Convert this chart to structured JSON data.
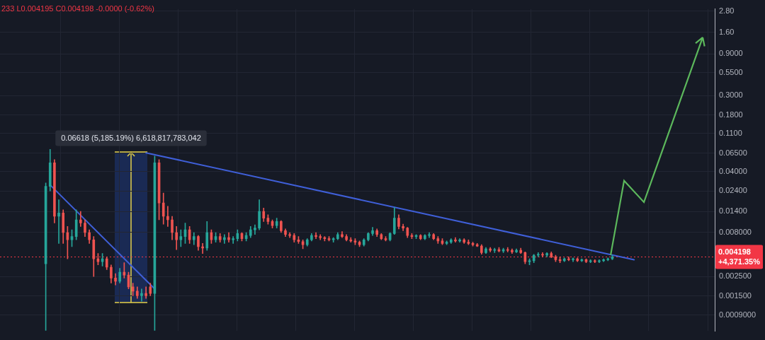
{
  "chart_data": {
    "type": "candlestick",
    "categories": [
      null,
      null,
      null,
      null,
      null,
      null,
      null,
      null,
      null,
      null,
      null,
      null,
      null,
      null,
      null,
      null,
      null,
      null,
      null,
      null,
      null,
      null,
      null,
      null,
      null,
      null,
      null,
      null,
      null,
      null,
      null,
      null,
      null,
      null,
      null,
      null,
      null,
      null,
      null,
      null,
      null,
      null,
      null,
      null,
      null,
      null,
      null,
      null,
      null,
      null,
      null,
      null,
      null,
      null,
      null,
      null,
      null,
      null,
      null,
      null,
      null,
      null,
      null,
      null,
      null,
      null,
      null,
      null,
      null,
      null,
      null,
      null,
      null,
      null,
      null,
      null,
      null,
      null,
      null,
      null,
      null,
      null,
      null,
      null,
      null,
      null,
      null,
      null,
      null,
      null,
      null,
      null,
      null,
      null,
      null,
      null,
      null,
      null,
      null,
      null,
      null,
      null,
      null,
      null,
      null,
      null,
      null,
      null,
      null,
      null,
      null,
      null,
      null,
      null,
      null,
      null,
      null,
      null,
      null,
      null,
      null,
      null,
      null,
      null,
      null,
      null,
      null,
      null,
      null,
      null,
      null,
      null,
      null,
      null,
      null,
      null,
      null,
      null,
      null,
      null,
      null,
      null,
      null,
      null,
      null,
      null,
      null,
      null,
      null,
      null,
      null,
      null,
      null,
      null,
      null,
      null,
      null,
      null,
      null,
      null,
      null,
      null,
      null,
      null
    ],
    "ohlc": [
      null,
      null,
      null,
      null,
      null,
      null,
      null,
      null,
      null,
      null,
      [
        0.0035,
        0.0297,
        0.0006,
        0.0272
      ],
      [
        0.0272,
        0.0721,
        0.024,
        0.0506
      ],
      [
        0.0506,
        0.0552,
        0.0103,
        0.0123
      ],
      [
        0.0123,
        0.0191,
        0.006,
        0.0134
      ],
      [
        0.0134,
        0.0146,
        0.006,
        0.008
      ],
      [
        0.008,
        0.0094,
        0.004,
        0.0066
      ],
      [
        0.0066,
        0.0086,
        0.0055,
        0.0072
      ],
      [
        0.0072,
        0.0146,
        0.0066,
        0.0112
      ],
      [
        0.0112,
        0.014,
        0.0094,
        0.0103
      ],
      [
        0.0103,
        0.0112,
        0.0072,
        0.008
      ],
      [
        0.008,
        0.0086,
        0.006,
        0.0066
      ],
      [
        0.0066,
        0.0072,
        0.0025,
        0.004
      ],
      [
        0.004,
        0.0046,
        0.0034,
        0.0037
      ],
      [
        0.0037,
        0.0046,
        0.0033,
        0.004
      ],
      [
        0.004,
        0.0042,
        0.003,
        0.0032
      ],
      [
        0.0032,
        0.0034,
        0.0021,
        0.0024
      ],
      [
        0.0024,
        0.0027,
        0.002,
        0.0022
      ],
      [
        0.0022,
        0.0031,
        0.0021,
        0.0028
      ],
      [
        0.0028,
        0.0036,
        0.0024,
        0.0026
      ],
      [
        0.0026,
        0.0028,
        0.0018,
        0.0019
      ],
      [
        0.0019,
        0.0021,
        0.0015,
        0.0017
      ],
      [
        0.0017,
        0.0019,
        0.0014,
        0.0015
      ],
      [
        0.0015,
        0.0018,
        0.0013,
        0.0016
      ],
      [
        0.0016,
        0.0019,
        0.0014,
        0.0015
      ],
      [
        0.0019,
        0.0021,
        0.0015,
        0.0016
      ],
      [
        0.0016,
        0.0604,
        0.0006,
        0.0506
      ],
      [
        0.0506,
        0.0552,
        0.0112,
        0.0175
      ],
      [
        0.0175,
        0.0228,
        0.01,
        0.0123
      ],
      [
        0.0123,
        0.016,
        0.0094,
        0.0112
      ],
      [
        0.0112,
        0.0123,
        0.0066,
        0.008
      ],
      [
        0.008,
        0.0094,
        0.0051,
        0.0066
      ],
      [
        0.0066,
        0.0086,
        0.0055,
        0.0072
      ],
      [
        0.0072,
        0.0103,
        0.006,
        0.0086
      ],
      [
        0.0086,
        0.0094,
        0.006,
        0.0066
      ],
      [
        0.0066,
        0.008,
        0.0058,
        0.0072
      ],
      [
        0.0072,
        0.0074,
        0.005,
        0.0055
      ],
      [
        0.0055,
        0.006,
        0.0046,
        0.0053
      ],
      [
        0.0053,
        0.0107,
        0.005,
        0.008
      ],
      [
        0.008,
        0.0086,
        0.006,
        0.0066
      ],
      [
        0.0066,
        0.008,
        0.0062,
        0.0072
      ],
      [
        0.0072,
        0.0078,
        0.0062,
        0.0066
      ],
      [
        0.0066,
        0.0076,
        0.006,
        0.007
      ],
      [
        0.007,
        0.008,
        0.0062,
        0.0066
      ],
      [
        0.0066,
        0.0072,
        0.006,
        0.0068
      ],
      [
        0.0068,
        0.0086,
        0.0064,
        0.0078
      ],
      [
        0.0078,
        0.008,
        0.0064,
        0.0068
      ],
      [
        0.0068,
        0.008,
        0.0064,
        0.0074
      ],
      [
        0.0074,
        0.0094,
        0.007,
        0.0086
      ],
      [
        0.0086,
        0.0098,
        0.0076,
        0.009
      ],
      [
        0.009,
        0.0191,
        0.0086,
        0.014
      ],
      [
        0.014,
        0.0153,
        0.0107,
        0.0117
      ],
      [
        0.0117,
        0.0128,
        0.01,
        0.0107
      ],
      [
        0.0107,
        0.0112,
        0.009,
        0.0096
      ],
      [
        0.0096,
        0.0117,
        0.009,
        0.0107
      ],
      [
        0.0107,
        0.011,
        0.008,
        0.0084
      ],
      [
        0.0084,
        0.0088,
        0.0072,
        0.0076
      ],
      [
        0.0076,
        0.008,
        0.007,
        0.0074
      ],
      [
        0.0074,
        0.0078,
        0.0062,
        0.0066
      ],
      [
        0.0066,
        0.0072,
        0.006,
        0.0063
      ],
      [
        0.0063,
        0.0066,
        0.0052,
        0.0058
      ],
      [
        0.0058,
        0.0068,
        0.0056,
        0.0066
      ],
      [
        0.0066,
        0.0078,
        0.0064,
        0.0074
      ],
      [
        0.0074,
        0.008,
        0.0068,
        0.0072
      ],
      [
        0.0072,
        0.0076,
        0.0066,
        0.007
      ],
      [
        0.007,
        0.0072,
        0.0064,
        0.0068
      ],
      [
        0.0068,
        0.0072,
        0.0064,
        0.0066
      ],
      [
        0.0066,
        0.007,
        0.0062,
        0.0068
      ],
      [
        0.0068,
        0.008,
        0.0066,
        0.0076
      ],
      [
        0.0076,
        0.0082,
        0.007,
        0.0072
      ],
      [
        0.0072,
        0.0076,
        0.0064,
        0.0066
      ],
      [
        0.0066,
        0.007,
        0.0062,
        0.0064
      ],
      [
        0.0064,
        0.0068,
        0.0058,
        0.0062
      ],
      [
        0.0062,
        0.0064,
        0.0055,
        0.0058
      ],
      [
        0.0058,
        0.0068,
        0.0056,
        0.0066
      ],
      [
        0.0066,
        0.008,
        0.0064,
        0.0078
      ],
      [
        0.0078,
        0.0092,
        0.0074,
        0.0084
      ],
      [
        0.0084,
        0.0088,
        0.0072,
        0.0076
      ],
      [
        0.0076,
        0.0078,
        0.0066,
        0.0068
      ],
      [
        0.0068,
        0.0072,
        0.0064,
        0.0066
      ],
      [
        0.0066,
        0.008,
        0.0064,
        0.0078
      ],
      [
        0.0078,
        0.0155,
        0.0076,
        0.0117
      ],
      [
        0.0117,
        0.0128,
        0.0088,
        0.0094
      ],
      [
        0.0094,
        0.01,
        0.0084,
        0.009
      ],
      [
        0.009,
        0.0092,
        0.007,
        0.0074
      ],
      [
        0.0074,
        0.0078,
        0.0068,
        0.0072
      ],
      [
        0.0072,
        0.0076,
        0.0068,
        0.0074
      ],
      [
        0.0074,
        0.0076,
        0.0066,
        0.0068
      ],
      [
        0.0068,
        0.0076,
        0.0066,
        0.0074
      ],
      [
        0.0074,
        0.008,
        0.007,
        0.0076
      ],
      [
        0.0076,
        0.0078,
        0.0066,
        0.0068
      ],
      [
        0.0068,
        0.0072,
        0.006,
        0.0064
      ],
      [
        0.0064,
        0.0068,
        0.0058,
        0.006
      ],
      [
        0.006,
        0.0064,
        0.0058,
        0.0062
      ],
      [
        0.0062,
        0.0068,
        0.006,
        0.0066
      ],
      [
        0.0066,
        0.007,
        0.0062,
        0.0064
      ],
      [
        0.0064,
        0.0068,
        0.0062,
        0.0066
      ],
      [
        0.0066,
        0.0068,
        0.006,
        0.0062
      ],
      [
        0.0062,
        0.0066,
        0.0058,
        0.006
      ],
      [
        0.006,
        0.0062,
        0.0056,
        0.0058
      ],
      [
        0.0058,
        0.006,
        0.0055,
        0.0056
      ],
      [
        0.0056,
        0.0058,
        0.0045,
        0.0047
      ],
      [
        0.0047,
        0.0054,
        0.0046,
        0.0052
      ],
      [
        0.0052,
        0.0054,
        0.0048,
        0.005
      ],
      [
        0.005,
        0.0053,
        0.0047,
        0.0051
      ],
      [
        0.0051,
        0.0054,
        0.0048,
        0.0049
      ],
      [
        0.0049,
        0.0053,
        0.0047,
        0.0051
      ],
      [
        0.0051,
        0.0054,
        0.0048,
        0.005
      ],
      [
        0.005,
        0.0052,
        0.0046,
        0.0048
      ],
      [
        0.0048,
        0.0052,
        0.0047,
        0.005
      ],
      [
        0.005,
        0.0053,
        0.0046,
        0.0047
      ],
      [
        0.0047,
        0.0048,
        0.0035,
        0.0037
      ],
      [
        0.0037,
        0.004,
        0.0034,
        0.0038
      ],
      [
        0.0038,
        0.0045,
        0.0036,
        0.0044
      ],
      [
        0.0044,
        0.0047,
        0.0042,
        0.0045
      ],
      [
        0.0045,
        0.0047,
        0.0042,
        0.0044
      ],
      [
        0.0044,
        0.0047,
        0.0042,
        0.0046
      ],
      [
        0.0046,
        0.0048,
        0.0041,
        0.0042
      ],
      [
        0.0042,
        0.0044,
        0.0037,
        0.0039
      ],
      [
        0.0039,
        0.0042,
        0.0036,
        0.0038
      ],
      [
        0.0038,
        0.0041,
        0.0037,
        0.004
      ],
      [
        0.004,
        0.0042,
        0.0038,
        0.0039
      ],
      [
        0.0039,
        0.0041,
        0.0037,
        0.004
      ],
      [
        0.004,
        0.0041,
        0.0037,
        0.0038
      ],
      [
        0.0038,
        0.004,
        0.0037,
        0.0039
      ],
      [
        0.0039,
        0.004,
        0.0036,
        0.0037
      ],
      [
        0.0037,
        0.0039,
        0.0036,
        0.0038
      ],
      [
        0.0038,
        0.0039,
        0.0036,
        0.0037
      ],
      [
        0.0037,
        0.0039,
        0.0036,
        0.0038
      ],
      [
        0.0038,
        0.004,
        0.0037,
        0.0039
      ],
      [
        0.0039,
        0.0041,
        0.0038,
        0.004
      ],
      [
        0.004,
        0.0044,
        0.0039,
        0.0042
      ],
      null,
      null,
      null,
      null,
      null,
      null,
      null,
      null,
      null,
      null,
      null,
      null,
      null,
      null,
      null,
      null,
      null,
      null,
      null,
      null,
      null,
      null,
      null
    ],
    "series": [
      {
        "type": "line",
        "color": "#3f5fd8",
        "values": [
          null,
          null,
          null,
          null,
          null,
          null,
          null,
          null,
          null,
          null,
          null,
          0.0282,
          null,
          null,
          null,
          null,
          null,
          null,
          null,
          null,
          null,
          null,
          null,
          null,
          null,
          null,
          null,
          null,
          null,
          null,
          null,
          null,
          null,
          null,
          null,
          0.0018,
          null,
          null,
          null,
          null,
          null,
          null,
          null,
          null,
          null,
          null,
          null,
          null,
          null,
          null,
          null,
          null,
          null,
          null,
          null,
          null,
          null,
          null,
          null,
          null,
          null,
          null,
          null,
          null,
          null,
          null,
          null,
          null,
          null,
          null,
          null,
          null,
          null,
          null,
          null,
          null,
          null,
          null,
          null,
          null,
          null,
          null,
          null,
          null,
          null,
          null,
          null,
          null,
          null,
          null,
          null,
          null,
          null,
          null,
          null,
          null,
          null,
          null,
          null,
          null,
          null,
          null,
          null,
          null,
          null,
          null,
          null,
          null,
          null,
          null,
          null,
          null,
          null,
          null,
          null,
          null,
          null,
          null,
          null,
          null,
          null,
          null,
          null,
          null,
          null,
          null,
          null,
          null,
          null,
          null,
          null,
          null,
          null,
          null,
          null,
          null,
          null,
          null,
          null,
          null,
          null,
          null,
          null,
          null,
          null,
          null,
          null,
          null,
          null,
          null,
          null,
          null,
          null,
          null,
          null,
          null,
          null,
          null,
          null,
          null,
          null,
          null,
          null,
          null
        ]
      },
      {
        "type": "line",
        "color": "#3f5fd8",
        "values": [
          null,
          null,
          null,
          null,
          null,
          null,
          null,
          null,
          null,
          null,
          null,
          null,
          null,
          null,
          null,
          null,
          null,
          null,
          null,
          null,
          null,
          null,
          null,
          null,
          null,
          null,
          null,
          null,
          null,
          null,
          null,
          null,
          null,
          0.066,
          null,
          null,
          null,
          null,
          null,
          null,
          null,
          null,
          null,
          null,
          null,
          null,
          null,
          null,
          null,
          null,
          null,
          null,
          null,
          null,
          null,
          null,
          null,
          null,
          null,
          null,
          null,
          null,
          null,
          null,
          null,
          null,
          null,
          null,
          null,
          null,
          null,
          null,
          null,
          null,
          null,
          null,
          null,
          null,
          null,
          null,
          null,
          null,
          null,
          null,
          null,
          null,
          null,
          null,
          null,
          null,
          null,
          null,
          null,
          null,
          null,
          null,
          null,
          null,
          null,
          null,
          null,
          null,
          null,
          null,
          null,
          null,
          null,
          null,
          null,
          null,
          null,
          null,
          null,
          null,
          null,
          null,
          null,
          null,
          null,
          null,
          null,
          null,
          null,
          null,
          null,
          null,
          null,
          null,
          null,
          null,
          null,
          null,
          null,
          null,
          null,
          null,
          null,
          null,
          null,
          null,
          null,
          null,
          null,
          null,
          null,
          0.0039,
          null,
          null,
          null,
          null,
          null,
          null,
          null,
          null,
          null,
          null,
          null,
          null,
          null,
          null,
          null,
          null,
          null,
          null
        ]
      }
    ],
    "log": true,
    "ylim": [
      0.00059,
      2.97
    ],
    "yticks": [
      {
        "value": 2.8,
        "label": "2.80"
      },
      {
        "value": 1.6,
        "label": "1.60"
      },
      {
        "value": 0.9,
        "label": "0.9000"
      },
      {
        "value": 0.55,
        "label": "0.5500"
      },
      {
        "value": 0.3,
        "label": "0.3000"
      },
      {
        "value": 0.18,
        "label": "0.1800"
      },
      {
        "value": 0.11,
        "label": "0.1100"
      },
      {
        "value": 0.065,
        "label": "0.06500"
      },
      {
        "value": 0.04,
        "label": "0.04000"
      },
      {
        "value": 0.024,
        "label": "0.02400"
      },
      {
        "value": 0.014,
        "label": "0.01400"
      },
      {
        "value": 0.008,
        "label": "0.008000"
      },
      {
        "value": 0.0025,
        "label": "0.002500"
      },
      {
        "value": 0.0015,
        "label": "0.001500"
      },
      {
        "value": 0.0009,
        "label": "0.0009000"
      }
    ],
    "tick_labels": "y",
    "grid": true,
    "ref_lines": [
      {
        "axis": "y",
        "value": 0.004198,
        "label": "0.004198\n+4,371.35%",
        "color": "#f23645",
        "line_style": "dotted"
      }
    ],
    "annotations": [
      "233 L0.004195 C0.004198 -0.0000 (-0.62%)",
      "0.06618 (5,185.19%) 6,618,817,783,042"
    ]
  }
}
